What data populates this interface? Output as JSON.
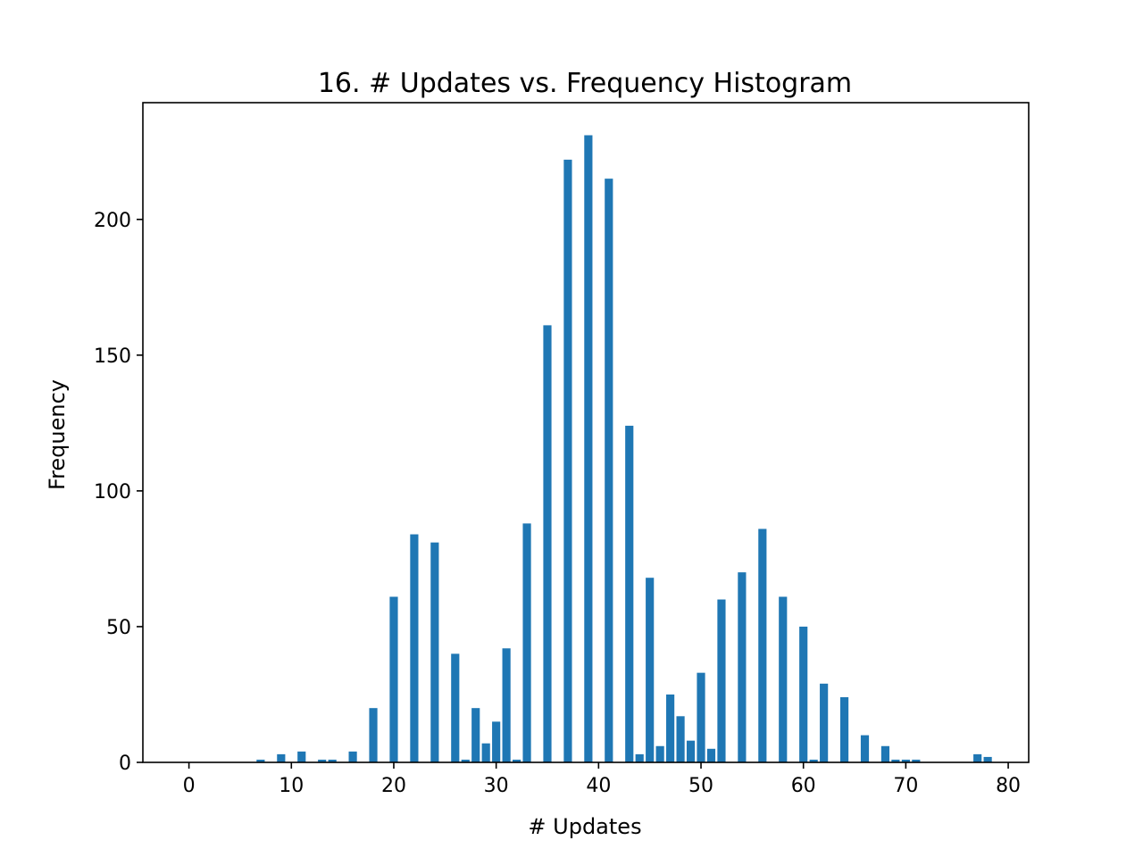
{
  "chart_data": {
    "type": "bar",
    "title": "16. # Updates vs. Frequency Histogram",
    "xlabel": "# Updates",
    "ylabel": "Frequency",
    "xlim": [
      -4.5,
      82
    ],
    "ylim": [
      0,
      243
    ],
    "xticks": [
      0,
      10,
      20,
      30,
      40,
      50,
      60,
      70,
      80
    ],
    "yticks": [
      0,
      50,
      100,
      150,
      200
    ],
    "grid": false,
    "legend": "none",
    "bar_color": "#1f77b4",
    "bar_width": 0.8,
    "x": [
      7,
      9,
      11,
      13,
      14,
      16,
      18,
      20,
      22,
      24,
      26,
      27,
      28,
      29,
      30,
      31,
      32,
      33,
      35,
      37,
      39,
      41,
      43,
      44,
      45,
      46,
      47,
      48,
      49,
      50,
      51,
      52,
      54,
      56,
      58,
      60,
      61,
      62,
      64,
      66,
      68,
      69,
      70,
      71,
      77,
      78
    ],
    "values": [
      1,
      3,
      4,
      1,
      1,
      4,
      20,
      61,
      84,
      81,
      40,
      1,
      20,
      7,
      15,
      42,
      1,
      88,
      161,
      222,
      231,
      215,
      124,
      3,
      68,
      6,
      25,
      17,
      8,
      33,
      5,
      60,
      70,
      86,
      61,
      50,
      1,
      29,
      24,
      10,
      6,
      1,
      1,
      1,
      3,
      2
    ]
  }
}
